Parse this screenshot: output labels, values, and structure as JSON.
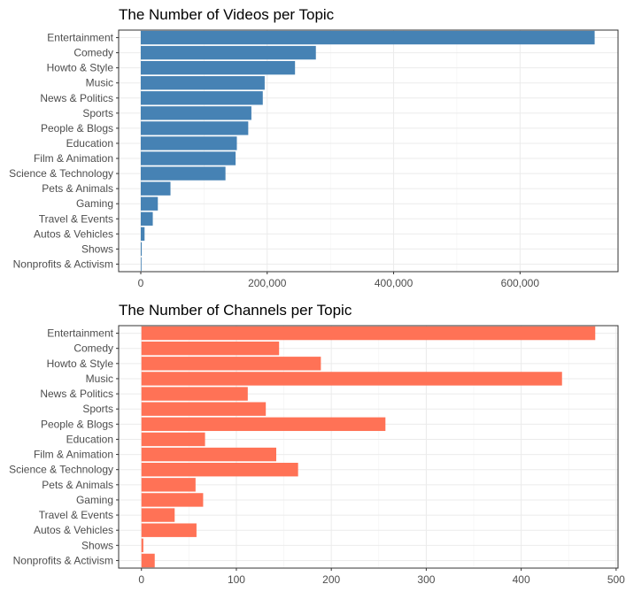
{
  "chart_data": [
    {
      "type": "bar",
      "orientation": "horizontal",
      "title": "The Number of Videos per Topic",
      "xlabel": "",
      "ylabel": "",
      "categories": [
        "Entertainment",
        "Comedy",
        "Howto & Style",
        "Music",
        "News & Politics",
        "Sports",
        "People & Blogs",
        "Education",
        "Film & Animation",
        "Science & Technology",
        "Pets & Animals",
        "Gaming",
        "Travel & Events",
        "Autos & Vehicles",
        "Shows",
        "Nonprofits & Activism"
      ],
      "values": [
        718000,
        277000,
        244000,
        196000,
        193000,
        175000,
        170000,
        152000,
        150000,
        134000,
        47000,
        27000,
        19000,
        6000,
        1500,
        700
      ],
      "xlim": [
        -35000,
        755000
      ],
      "ticks": [
        0,
        200000,
        400000,
        600000
      ],
      "tick_labels": [
        "0",
        "200,000",
        "400,000",
        "600,000"
      ],
      "grid": true,
      "color": "#4682b4"
    },
    {
      "type": "bar",
      "orientation": "horizontal",
      "title": "The Number of Channels per Topic",
      "xlabel": "",
      "ylabel": "",
      "categories": [
        "Entertainment",
        "Comedy",
        "Howto & Style",
        "Music",
        "News & Politics",
        "Sports",
        "People & Blogs",
        "Education",
        "Film & Animation",
        "Science & Technology",
        "Pets & Animals",
        "Gaming",
        "Travel & Events",
        "Autos & Vehicles",
        "Shows",
        "Nonprofits & Activism"
      ],
      "values": [
        478,
        145,
        189,
        443,
        112,
        131,
        257,
        67,
        142,
        165,
        57,
        65,
        35,
        58,
        2,
        14
      ],
      "xlim": [
        -24,
        502
      ],
      "ticks": [
        0,
        100,
        200,
        300,
        400,
        500
      ],
      "tick_labels": [
        "0",
        "100",
        "200",
        "300",
        "400",
        "500"
      ],
      "grid": true,
      "color": "#ff7256"
    }
  ]
}
